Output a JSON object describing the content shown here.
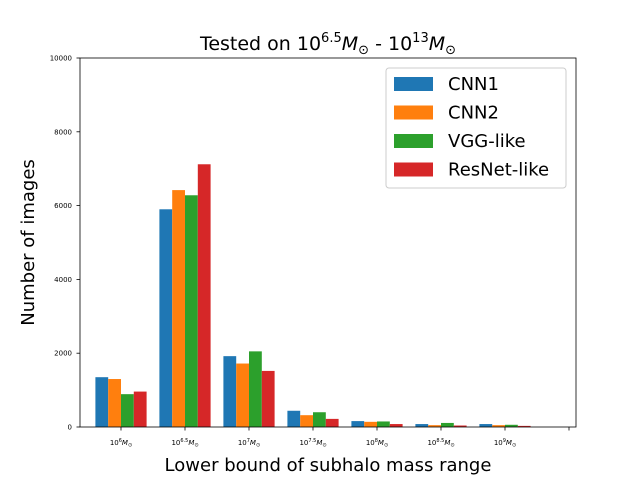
{
  "chart_data": {
    "type": "bar",
    "title": {
      "prefix": "Tested on 10",
      "exp1": "6.5",
      "mid": " - 10",
      "exp2": "13",
      "var": "M",
      "sub": "⊙"
    },
    "xlabel": "Lower bound of subhalo mass range",
    "ylabel": "Number of images",
    "ylim": [
      0,
      10000
    ],
    "yticks": [
      0,
      2000,
      4000,
      6000,
      8000,
      10000
    ],
    "categories": [
      {
        "base": "10",
        "exp": "6",
        "var": "M",
        "sub": "⊙"
      },
      {
        "base": "10",
        "exp": "6.5",
        "var": "M",
        "sub": "⊙"
      },
      {
        "base": "10",
        "exp": "7",
        "var": "M",
        "sub": "⊙"
      },
      {
        "base": "10",
        "exp": "7.5",
        "var": "M",
        "sub": "⊙"
      },
      {
        "base": "10",
        "exp": "8",
        "var": "M",
        "sub": "⊙"
      },
      {
        "base": "10",
        "exp": "8.5",
        "var": "M",
        "sub": "⊙"
      },
      {
        "base": "10",
        "exp": "9",
        "var": "M",
        "sub": "⊙"
      }
    ],
    "series": [
      {
        "name": "CNN1",
        "color": "#1f77b4",
        "values": [
          1350,
          5900,
          1920,
          440,
          160,
          80,
          80
        ]
      },
      {
        "name": "CNN2",
        "color": "#ff7f0e",
        "values": [
          1300,
          6420,
          1720,
          320,
          140,
          50,
          50
        ]
      },
      {
        "name": "VGG-like",
        "color": "#2ca02c",
        "values": [
          890,
          6280,
          2050,
          400,
          150,
          110,
          60
        ]
      },
      {
        "name": "ResNet-like",
        "color": "#d62728",
        "values": [
          960,
          7120,
          1520,
          220,
          80,
          40,
          30
        ]
      }
    ],
    "legend": "top-right",
    "grid": false
  }
}
